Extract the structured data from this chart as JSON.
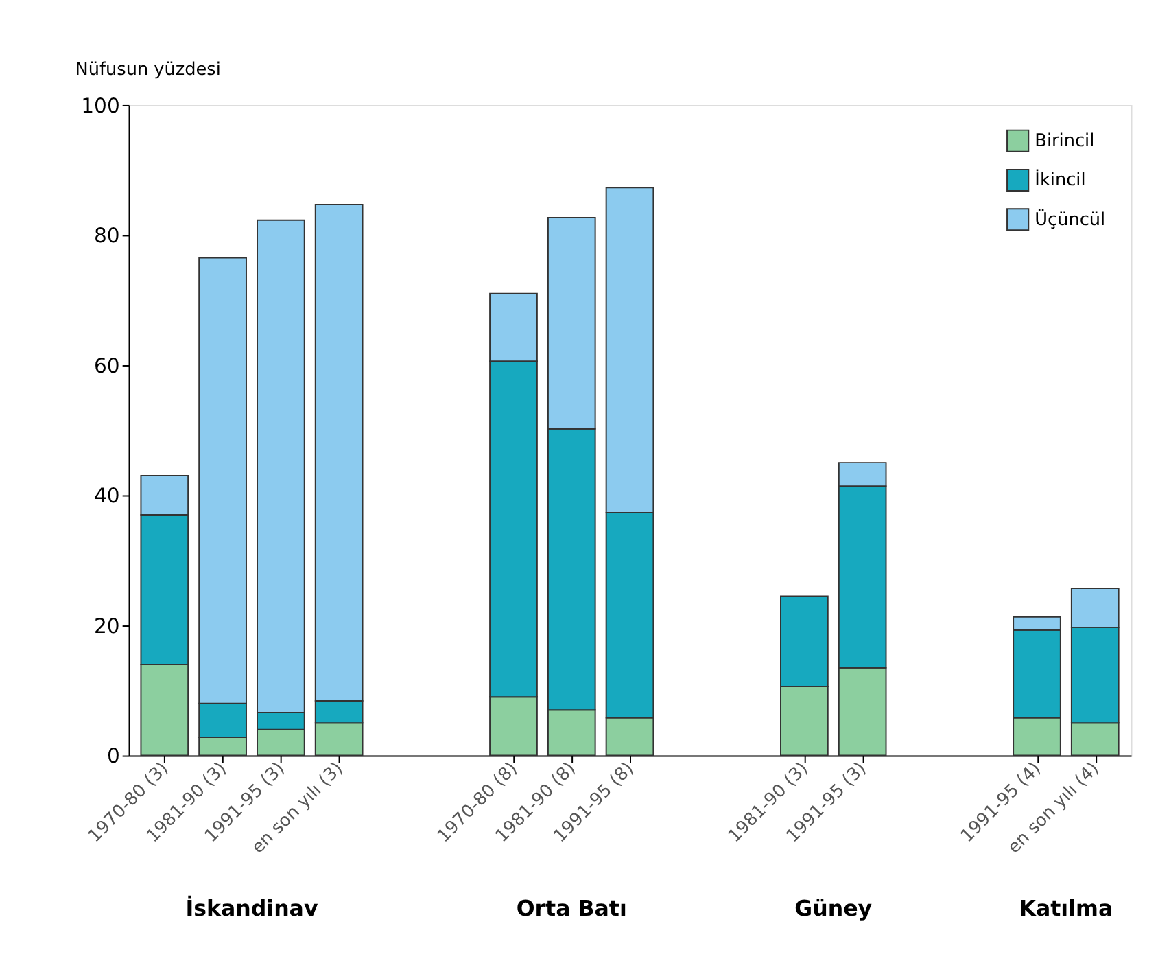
{
  "chart_data": {
    "type": "bar",
    "stacked": true,
    "ylabel": "Nüfusun yüzdesi",
    "categories": [
      "1970-80 (3)",
      "1981-90 (3)",
      "1991-95 (3)",
      "en son yılı (3)",
      null,
      null,
      "1970-80 (8)",
      "1981-90 (8)",
      "1991-95 (8)",
      null,
      null,
      "1981-90 (3)",
      "1991-95 (3)",
      null,
      null,
      "1991-95 (4)",
      "en son yılı (4)"
    ],
    "series": [
      {
        "name": "Birincil",
        "color": "#8ccf9f",
        "values": [
          14,
          2.8,
          4,
          5,
          null,
          null,
          9,
          7,
          5.8,
          null,
          null,
          10.6,
          13.5,
          null,
          null,
          5.8,
          5
        ]
      },
      {
        "name": "İkincil",
        "color": "#17a9bf",
        "values": [
          23,
          5.2,
          2.6,
          3.4,
          null,
          null,
          51.6,
          43.2,
          31.5,
          null,
          null,
          13.9,
          27.9,
          null,
          null,
          13.5,
          14.7
        ]
      },
      {
        "name": "Üçüncül",
        "color": "#8ccbef",
        "values": [
          6,
          68.5,
          75.7,
          76.3,
          null,
          null,
          10.4,
          32.5,
          50,
          null,
          null,
          null,
          3.6,
          null,
          null,
          2,
          6
        ]
      }
    ],
    "ylim": [
      0,
      100
    ],
    "yticks": [
      0,
      20,
      40,
      60,
      80,
      100
    ],
    "grid": false,
    "legend": "top right",
    "annotations": [
      "İskandinav",
      "Orta Batı",
      "Güney",
      "Katılma"
    ]
  }
}
